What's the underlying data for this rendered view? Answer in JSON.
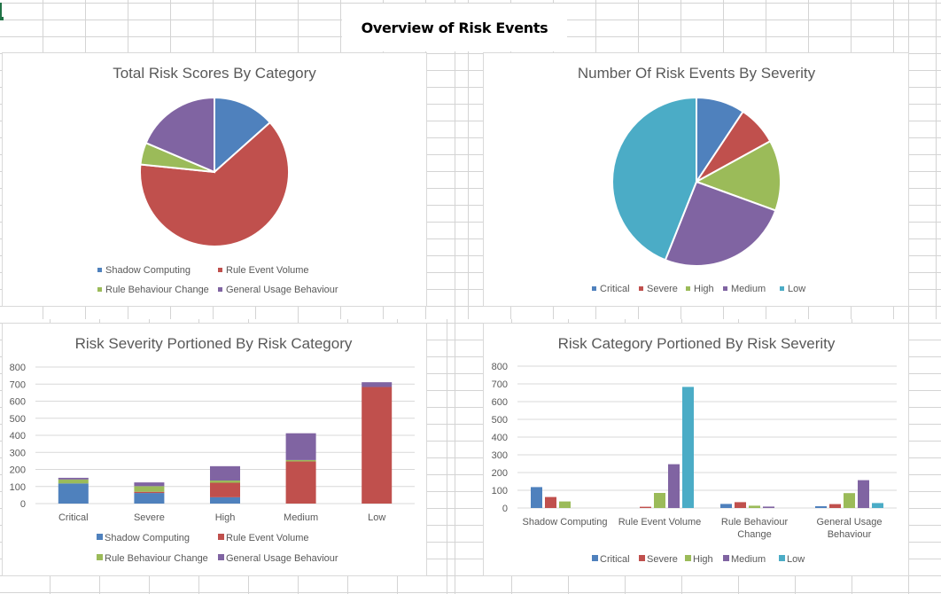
{
  "sheet": {
    "title": "Overview of Risk Events"
  },
  "colors": {
    "blue": "#4f81bd",
    "red": "#c0504d",
    "green": "#9bbb59",
    "purple": "#8064a2",
    "cyan": "#4bacc6",
    "title_text": "#595959",
    "axis_text": "#595959",
    "gridline": "#d9d9d9"
  },
  "chart_data": [
    {
      "type": "pie",
      "title": "Total Risk Scores By Category",
      "categories": [
        "Shadow Computing",
        "Rule Event Volume",
        "Rule Behaviour Change",
        "General Usage Behaviour"
      ],
      "values": [
        217,
        1022,
        77,
        301
      ],
      "colors": [
        "#4f81bd",
        "#c0504d",
        "#9bbb59",
        "#8064a2"
      ],
      "legend": "bottom"
    },
    {
      "type": "pie",
      "title": "Number Of Risk Events By Severity",
      "categories": [
        "Critical",
        "Severe",
        "High",
        "Medium",
        "Low"
      ],
      "values": [
        151,
        124,
        219,
        412,
        711
      ],
      "colors": [
        "#4f81bd",
        "#c0504d",
        "#9bbb59",
        "#8064a2",
        "#4bacc6"
      ],
      "legend": "bottom"
    },
    {
      "type": "bar",
      "stacked": true,
      "title": "Risk Severity Portioned By Risk Category",
      "categories": [
        "Critical",
        "Severe",
        "High",
        "Medium",
        "Low"
      ],
      "series": [
        {
          "name": "Shadow Computing",
          "color": "#4f81bd",
          "values": [
            118,
            62,
            37,
            0,
            0
          ]
        },
        {
          "name": "Rule Event Volume",
          "color": "#c0504d",
          "values": [
            0,
            7,
            85,
            247,
            683
          ]
        },
        {
          "name": "Rule Behaviour Change",
          "color": "#9bbb59",
          "values": [
            23,
            33,
            13,
            8,
            0
          ]
        },
        {
          "name": "General Usage Behaviour",
          "color": "#8064a2",
          "values": [
            10,
            22,
            84,
            157,
            28
          ]
        }
      ],
      "ylim": [
        0,
        800
      ],
      "yticks": [
        "0",
        "100",
        "200",
        "300",
        "400",
        "500",
        "600",
        "700",
        "800"
      ],
      "grid": true,
      "legend": "bottom"
    },
    {
      "type": "bar",
      "stacked": false,
      "title": "Risk Category Portioned By Risk Severity",
      "categories": [
        "Shadow Computing",
        "Rule Event Volume",
        "Rule Behaviour Change",
        "General Usage Behaviour"
      ],
      "category_lines": [
        [
          "Shadow Computing"
        ],
        [
          "Rule Event Volume"
        ],
        [
          "Rule Behaviour",
          "Change"
        ],
        [
          "General Usage",
          "Behaviour"
        ]
      ],
      "series": [
        {
          "name": "Critical",
          "color": "#4f81bd",
          "values": [
            118,
            0,
            23,
            10
          ]
        },
        {
          "name": "Severe",
          "color": "#c0504d",
          "values": [
            62,
            7,
            33,
            22
          ]
        },
        {
          "name": "High",
          "color": "#9bbb59",
          "values": [
            37,
            85,
            13,
            84
          ]
        },
        {
          "name": "Medium",
          "color": "#8064a2",
          "values": [
            0,
            247,
            8,
            157
          ]
        },
        {
          "name": "Low",
          "color": "#4bacc6",
          "values": [
            0,
            683,
            0,
            28
          ]
        }
      ],
      "ylim": [
        0,
        800
      ],
      "yticks": [
        "0",
        "100",
        "200",
        "300",
        "400",
        "500",
        "600",
        "700",
        "800"
      ],
      "grid": true,
      "legend": "bottom"
    }
  ]
}
